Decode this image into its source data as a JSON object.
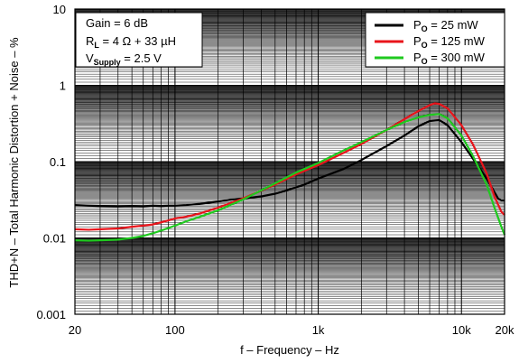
{
  "chart_data": {
    "type": "line",
    "xlabel": "f – Frequency – Hz",
    "ylabel": "THD+N – Total Harmonic Distortion + Noise – %",
    "x_scale": "log",
    "y_scale": "log",
    "xlim": [
      20,
      20000
    ],
    "ylim": [
      0.001,
      10
    ],
    "grid": true,
    "legend_position": "top-right",
    "x_ticks": [
      {
        "value": 20,
        "label": "20"
      },
      {
        "value": 100,
        "label": "100"
      },
      {
        "value": 1000,
        "label": "1k"
      },
      {
        "value": 10000,
        "label": "10k"
      },
      {
        "value": 20000,
        "label": "20k"
      }
    ],
    "y_ticks": [
      {
        "value": 0.001,
        "label": "0.001"
      },
      {
        "value": 0.01,
        "label": "0.01"
      },
      {
        "value": 0.1,
        "label": "0.1"
      },
      {
        "value": 1,
        "label": "1"
      },
      {
        "value": 10,
        "label": "10"
      }
    ],
    "annotation": {
      "line1": "Gain = 6 dB",
      "line2_pre": "R",
      "line2_sub": "L",
      "line2_post": " = 4 Ω + 33 µH",
      "line3_pre": "V",
      "line3_sub": "Supply",
      "line3_post": " = 2.5 V"
    },
    "series": [
      {
        "name_pre": "P",
        "name_sub": "O",
        "name_post": " = 25 mW",
        "color": "#000000",
        "points": [
          [
            20,
            0.027
          ],
          [
            25,
            0.0265
          ],
          [
            30,
            0.0262
          ],
          [
            40,
            0.026
          ],
          [
            50,
            0.0262
          ],
          [
            60,
            0.026
          ],
          [
            70,
            0.0265
          ],
          [
            80,
            0.0262
          ],
          [
            90,
            0.0265
          ],
          [
            100,
            0.0265
          ],
          [
            120,
            0.027
          ],
          [
            150,
            0.028
          ],
          [
            200,
            0.03
          ],
          [
            250,
            0.032
          ],
          [
            300,
            0.033
          ],
          [
            350,
            0.034
          ],
          [
            400,
            0.035
          ],
          [
            500,
            0.038
          ],
          [
            600,
            0.042
          ],
          [
            700,
            0.046
          ],
          [
            800,
            0.05
          ],
          [
            1000,
            0.06
          ],
          [
            1500,
            0.08
          ],
          [
            2000,
            0.105
          ],
          [
            3000,
            0.16
          ],
          [
            4000,
            0.22
          ],
          [
            5000,
            0.29
          ],
          [
            6000,
            0.34
          ],
          [
            7000,
            0.35
          ],
          [
            8000,
            0.3
          ],
          [
            10000,
            0.18
          ],
          [
            12000,
            0.11
          ],
          [
            15000,
            0.06
          ],
          [
            17000,
            0.04
          ],
          [
            18000,
            0.033
          ],
          [
            19000,
            0.031
          ],
          [
            20000,
            0.031
          ]
        ]
      },
      {
        "name_pre": "P",
        "name_sub": "O",
        "name_post": " = 125 mW",
        "color": "#e8141b",
        "points": [
          [
            20,
            0.013
          ],
          [
            25,
            0.0128
          ],
          [
            30,
            0.013
          ],
          [
            40,
            0.0133
          ],
          [
            50,
            0.014
          ],
          [
            60,
            0.0145
          ],
          [
            70,
            0.015
          ],
          [
            80,
            0.016
          ],
          [
            90,
            0.017
          ],
          [
            100,
            0.018
          ],
          [
            120,
            0.019
          ],
          [
            150,
            0.021
          ],
          [
            200,
            0.025
          ],
          [
            300,
            0.033
          ],
          [
            500,
            0.05
          ],
          [
            700,
            0.068
          ],
          [
            1000,
            0.09
          ],
          [
            1500,
            0.13
          ],
          [
            2000,
            0.17
          ],
          [
            3000,
            0.26
          ],
          [
            4000,
            0.36
          ],
          [
            5000,
            0.46
          ],
          [
            6000,
            0.55
          ],
          [
            6500,
            0.58
          ],
          [
            7000,
            0.57
          ],
          [
            8000,
            0.5
          ],
          [
            10000,
            0.3
          ],
          [
            12000,
            0.17
          ],
          [
            15000,
            0.07
          ],
          [
            17000,
            0.035
          ],
          [
            19000,
            0.022
          ],
          [
            20000,
            0.02
          ]
        ]
      },
      {
        "name_pre": "P",
        "name_sub": "O",
        "name_post": " = 300 mW",
        "color": "#1fc91f",
        "points": [
          [
            20,
            0.0093
          ],
          [
            25,
            0.0092
          ],
          [
            30,
            0.0093
          ],
          [
            40,
            0.0095
          ],
          [
            50,
            0.01
          ],
          [
            60,
            0.0106
          ],
          [
            70,
            0.0115
          ],
          [
            80,
            0.0125
          ],
          [
            90,
            0.0135
          ],
          [
            100,
            0.0145
          ],
          [
            120,
            0.0165
          ],
          [
            150,
            0.019
          ],
          [
            200,
            0.023
          ],
          [
            300,
            0.032
          ],
          [
            500,
            0.052
          ],
          [
            700,
            0.072
          ],
          [
            1000,
            0.096
          ],
          [
            1500,
            0.14
          ],
          [
            2000,
            0.18
          ],
          [
            3000,
            0.26
          ],
          [
            4000,
            0.33
          ],
          [
            5000,
            0.38
          ],
          [
            6000,
            0.41
          ],
          [
            7000,
            0.42
          ],
          [
            8000,
            0.37
          ],
          [
            10000,
            0.22
          ],
          [
            12000,
            0.12
          ],
          [
            15000,
            0.05
          ],
          [
            17000,
            0.025
          ],
          [
            19000,
            0.014
          ],
          [
            20000,
            0.011
          ]
        ]
      }
    ]
  }
}
